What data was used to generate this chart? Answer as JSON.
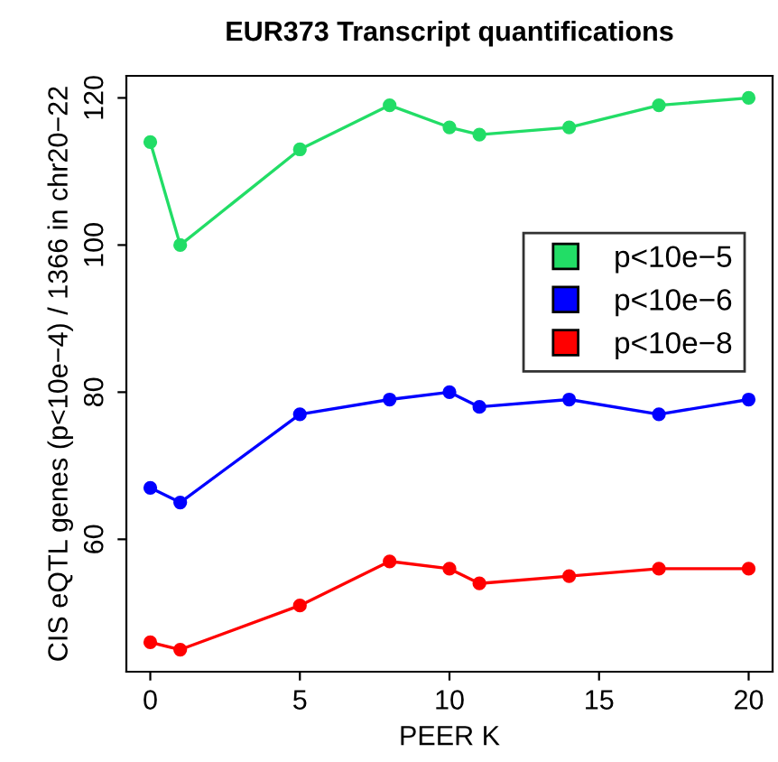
{
  "chart_data": {
    "type": "line",
    "title": "EUR373 Transcript quantifications",
    "xlabel": "PEER K",
    "ylabel": "CIS eQTL genes (p<10e−4) / 1366 in chr20−22",
    "x": [
      0,
      1,
      5,
      8,
      10,
      11,
      14,
      17,
      20
    ],
    "series": [
      {
        "name": "p<10e−5",
        "color": "#22dd66",
        "values": [
          114,
          100,
          113,
          119,
          116,
          115,
          116,
          119,
          120
        ]
      },
      {
        "name": "p<10e−6",
        "color": "#0000ff",
        "values": [
          67,
          65,
          77,
          79,
          80,
          78,
          79,
          77,
          79
        ]
      },
      {
        "name": "p<10e−8",
        "color": "#ff0000",
        "values": [
          46,
          45,
          51,
          57,
          56,
          54,
          55,
          56,
          56
        ]
      }
    ],
    "xlim": [
      -0.8,
      20.8
    ],
    "ylim": [
      42,
      123
    ],
    "xticks": [
      0,
      5,
      10,
      15,
      20
    ],
    "yticks": [
      60,
      80,
      100,
      120
    ],
    "marker": "circle",
    "line_style": "solid",
    "grid": false,
    "legend": "right"
  }
}
